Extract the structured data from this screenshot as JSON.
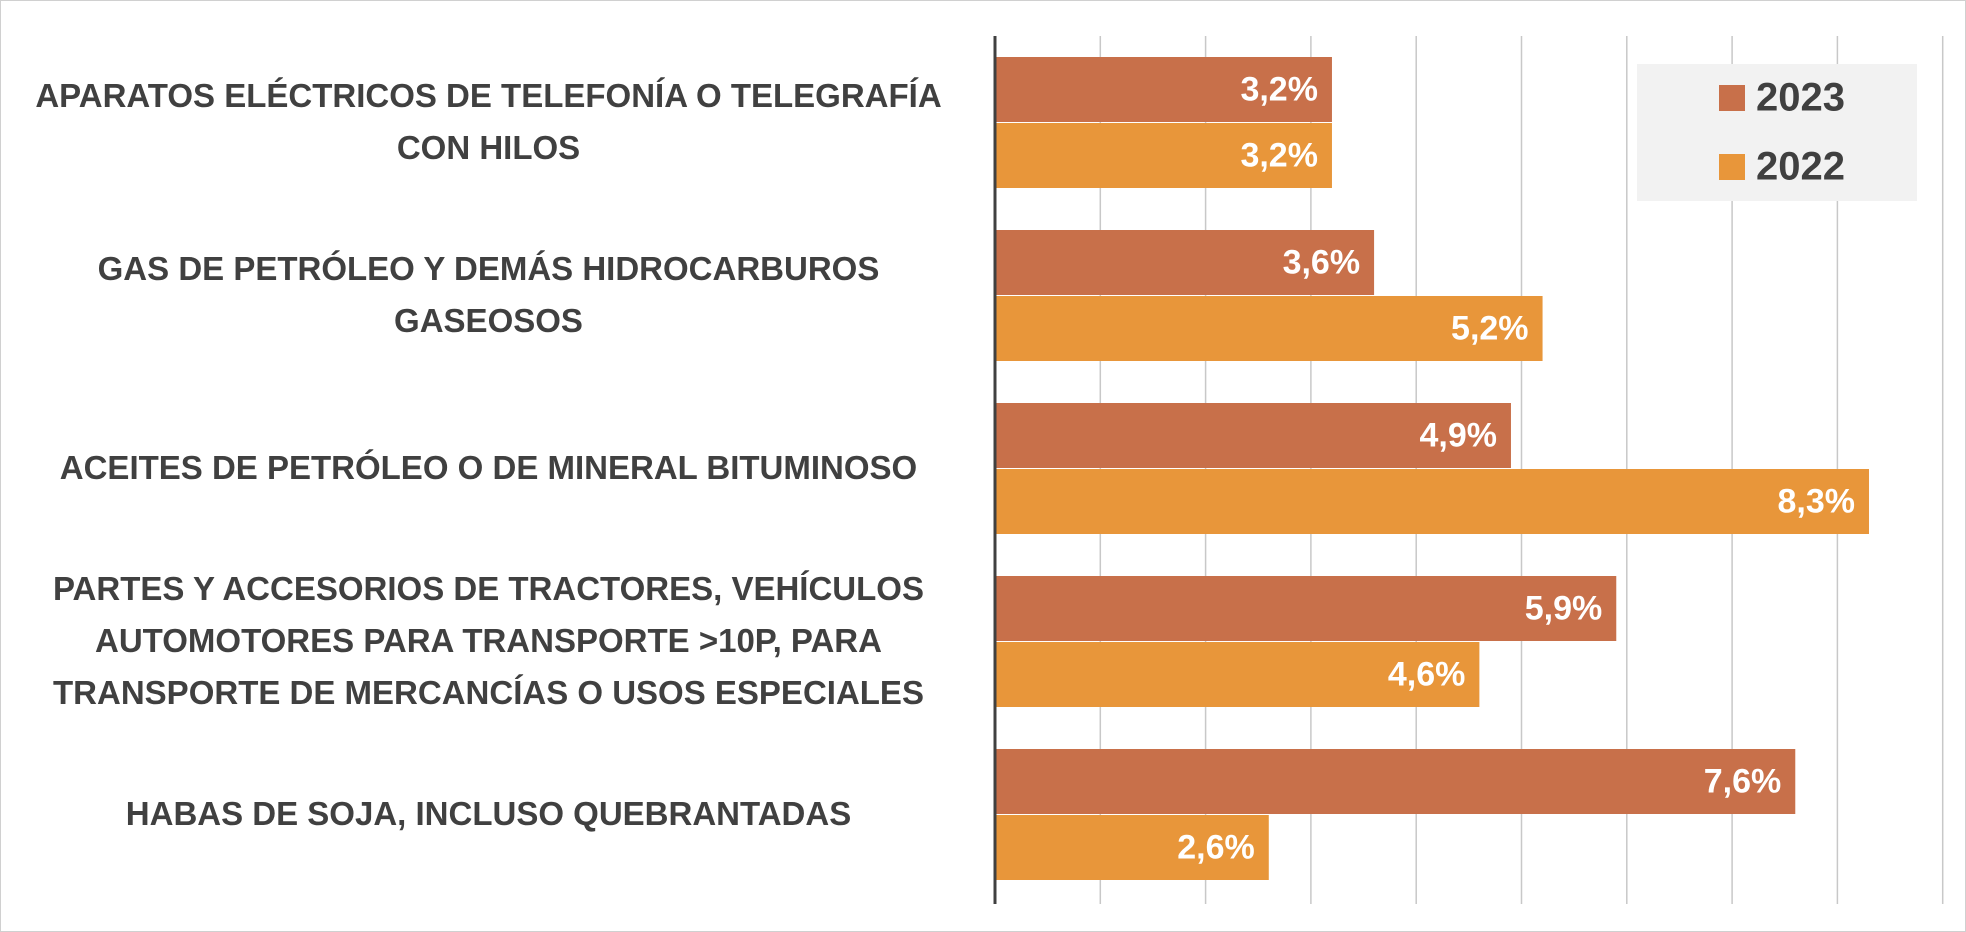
{
  "chart_data": {
    "type": "bar",
    "orientation": "horizontal",
    "categories": [
      "APARATOS ELÉCTRICOS DE TELEFONÍA O TELEGRAFÍA CON HILOS",
      "GAS DE PETRÓLEO Y DEMÁS HIDROCARBUROS GASEOSOS",
      "ACEITES DE PETRÓLEO O DE MINERAL BITUMINOSO",
      "PARTES Y ACCESORIOS DE TRACTORES, VEHÍCULOS AUTOMOTORES PARA TRANSPORTE >10P, PARA TRANSPORTE DE MERCANCÍAS O USOS ESPECIALES",
      "HABAS DE SOJA, INCLUSO QUEBRANTADAS"
    ],
    "series": [
      {
        "name": "2023",
        "color": "#c8704a",
        "values": [
          3.2,
          3.6,
          4.9,
          5.9,
          7.6
        ],
        "value_labels": [
          "3,2%",
          "3,6%",
          "4,9%",
          "5,9%",
          "7,6%"
        ]
      },
      {
        "name": "2022",
        "color": "#e8963a",
        "values": [
          3.2,
          5.2,
          8.3,
          4.6,
          2.6
        ],
        "value_labels": [
          "3,2%",
          "5,2%",
          "8,3%",
          "4,6%",
          "2,6%"
        ]
      }
    ],
    "xlim": [
      0,
      9
    ],
    "xticks": [
      0,
      1,
      2,
      3,
      4,
      5,
      6,
      7,
      8,
      9
    ],
    "grid": true,
    "legend": "top-right"
  }
}
